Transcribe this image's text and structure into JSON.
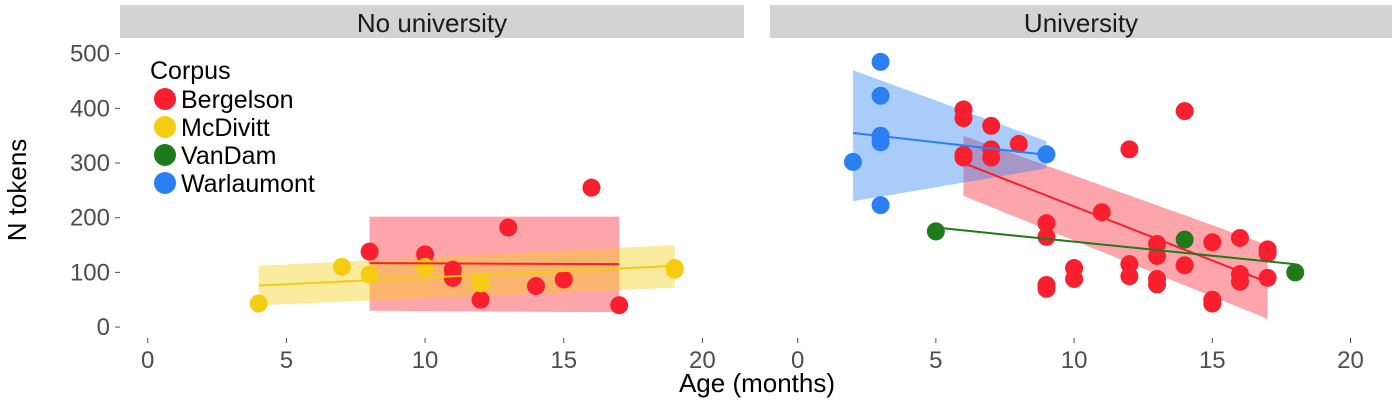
{
  "chart_data": {
    "type": "scatter",
    "xlabel": "Age (months)",
    "ylabel": "N tokens",
    "xlim": [
      -1,
      21.5
    ],
    "ylim": [
      -20,
      525
    ],
    "x_ticks": [
      0,
      5,
      10,
      15,
      20
    ],
    "y_ticks": [
      0,
      100,
      200,
      300,
      400,
      500
    ],
    "grid": false,
    "legend": {
      "title": "Corpus",
      "placement": "top-left inside first panel",
      "entries": [
        {
          "name": "Bergelson",
          "color": "#f8202f"
        },
        {
          "name": "McDivitt",
          "color": "#f5cc10"
        },
        {
          "name": "VanDam",
          "color": "#1f7a1a"
        },
        {
          "name": "Warlaumont",
          "color": "#2a7ff2"
        }
      ]
    },
    "panels": [
      {
        "title": "No university",
        "series": [
          {
            "name": "Bergelson",
            "points": [
              [
                8,
                138
              ],
              [
                10,
                133
              ],
              [
                11,
                105
              ],
              [
                11,
                90
              ],
              [
                12,
                50
              ],
              [
                13,
                182
              ],
              [
                14,
                75
              ],
              [
                15,
                87
              ],
              [
                16,
                255
              ],
              [
                17,
                40
              ]
            ],
            "fit": {
              "x": [
                8,
                17
              ],
              "y": [
                117,
                115
              ],
              "ci_low": [
                30,
                27
              ],
              "ci_high": [
                202,
                202
              ]
            }
          },
          {
            "name": "McDivitt",
            "points": [
              [
                4,
                43
              ],
              [
                7,
                110
              ],
              [
                8,
                96
              ],
              [
                10,
                110
              ],
              [
                12,
                80
              ],
              [
                19,
                105
              ],
              [
                19,
                108
              ]
            ],
            "fit": {
              "x": [
                4,
                19
              ],
              "y": [
                76,
                112
              ],
              "ci_low": [
                40,
                72
              ],
              "ci_high": [
                112,
                150
              ]
            }
          }
        ]
      },
      {
        "title": "University",
        "series": [
          {
            "name": "Bergelson",
            "points": [
              [
                6,
                398
              ],
              [
                6,
                382
              ],
              [
                6,
                315
              ],
              [
                6,
                310
              ],
              [
                7,
                368
              ],
              [
                7,
                325
              ],
              [
                7,
                310
              ],
              [
                8,
                335
              ],
              [
                9,
                190
              ],
              [
                9,
                165
              ],
              [
                9,
                77
              ],
              [
                9,
                70
              ],
              [
                10,
                108
              ],
              [
                10,
                88
              ],
              [
                11,
                210
              ],
              [
                12,
                325
              ],
              [
                12,
                115
              ],
              [
                12,
                93
              ],
              [
                13,
                152
              ],
              [
                13,
                130
              ],
              [
                13,
                88
              ],
              [
                13,
                78
              ],
              [
                14,
                395
              ],
              [
                14,
                113
              ],
              [
                15,
                155
              ],
              [
                15,
                50
              ],
              [
                15,
                43
              ],
              [
                16,
                163
              ],
              [
                16,
                97
              ],
              [
                16,
                83
              ],
              [
                17,
                142
              ],
              [
                17,
                135
              ],
              [
                17,
                90
              ]
            ],
            "fit": {
              "x": [
                6,
                17
              ],
              "y": [
                300,
                82
              ],
              "ci_low": [
                240,
                15
              ],
              "ci_high": [
                350,
                150
              ]
            }
          },
          {
            "name": "VanDam",
            "points": [
              [
                5,
                175
              ],
              [
                14,
                160
              ],
              [
                18,
                100
              ]
            ],
            "fit": {
              "x": [
                5,
                18
              ],
              "y": [
                182,
                115
              ],
              "ci_low": null,
              "ci_high": null
            }
          },
          {
            "name": "Warlaumont",
            "points": [
              [
                2,
                302
              ],
              [
                3,
                485
              ],
              [
                3,
                423
              ],
              [
                3,
                350
              ],
              [
                3,
                338
              ],
              [
                3,
                223
              ],
              [
                9,
                316
              ]
            ],
            "fit": {
              "x": [
                2,
                9
              ],
              "y": [
                355,
                315
              ],
              "ci_low": [
                230,
                290
              ],
              "ci_high": [
                470,
                340
              ]
            }
          }
        ]
      }
    ]
  }
}
